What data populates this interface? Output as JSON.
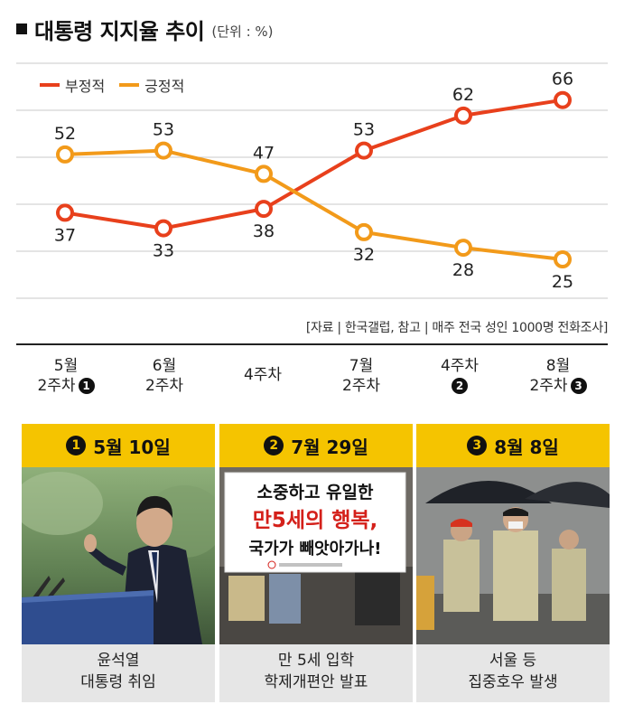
{
  "header": {
    "title": "대통령 지지율 추이",
    "unit": "(단위 : %)"
  },
  "chart_data": {
    "type": "line",
    "title": "대통령 지지율 추이",
    "unit": "(단위 : %)",
    "categories": [
      "5월 2주차",
      "6월 2주차",
      "4주차",
      "7월 2주차",
      "4주차",
      "8월 2주차"
    ],
    "series": [
      {
        "name": "부정적",
        "color": "#e8401c",
        "values": [
          37,
          33,
          38,
          53,
          62,
          66
        ]
      },
      {
        "name": "긍정적",
        "color": "#f29a1a",
        "values": [
          52,
          53,
          47,
          32,
          28,
          25
        ]
      }
    ],
    "ylim": [
      15,
      75
    ],
    "grid": true,
    "legend": "top-left"
  },
  "source": "[자료 | 한국갤럽, 참고 | 매주 전국 성인 1000명 전화조사]",
  "xaxis": [
    {
      "line1": "5월",
      "line2": "2주차",
      "marker": "1"
    },
    {
      "line1": "6월",
      "line2": "2주차",
      "marker": ""
    },
    {
      "line1": "4주차",
      "line2": "",
      "marker": ""
    },
    {
      "line1": "7월",
      "line2": "2주차",
      "marker": ""
    },
    {
      "line1": "4주차",
      "line2": "",
      "marker": "2"
    },
    {
      "line1": "8월",
      "line2": "2주차",
      "marker": "3"
    }
  ],
  "panels": [
    {
      "marker": "1",
      "date": "5월 10일",
      "caption1": "윤석열",
      "caption2": "대통령 취임"
    },
    {
      "marker": "2",
      "date": "7월 29일",
      "caption1": "만 5세 입학",
      "caption2": "학제개편안 발표",
      "sign1": "소중하고 유일한",
      "sign2": "만5세의 행복,",
      "sign3": "국가가 빼앗아가나!"
    },
    {
      "marker": "3",
      "date": "8월 8일",
      "caption1": "서울 등",
      "caption2": "집중호우 발생"
    }
  ]
}
